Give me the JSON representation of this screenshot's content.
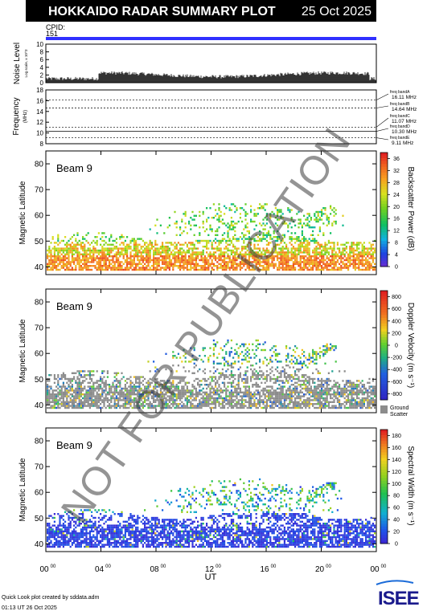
{
  "header": {
    "title": "HOKKAIDO RADAR SUMMARY PLOT",
    "date": "25 Oct 2025",
    "cpid_label": "CPID:",
    "cpid_value": "151"
  },
  "colors": {
    "header_bg": "#000000",
    "header_fg": "#ffffff",
    "cpid_bar": "#3030ff",
    "ground_scatter": "#8c8c8c"
  },
  "noise_panel": {
    "ylabel": "Noise Level",
    "ylabel_sub": "Log scale, x 10^3",
    "ylim": [
      0,
      10
    ],
    "yticks": [
      0,
      2,
      4,
      6,
      8,
      10
    ]
  },
  "frequency_panel": {
    "ylabel": "Frequency",
    "ylabel_unit": "(MHz)",
    "ylim": [
      8,
      18
    ],
    "yticks": [
      8,
      10,
      12,
      14,
      16,
      18
    ],
    "bands": [
      {
        "label": "freq bandA",
        "value": "16.11 MHz",
        "freq": 16.11
      },
      {
        "label": "freq bandB",
        "value": "14.64 MHz",
        "freq": 14.64
      },
      {
        "label": "freq bandC",
        "value": "11.07 MHz",
        "freq": 11.07
      },
      {
        "label": "freq bandD",
        "value": "10.30 MHz",
        "freq": 10.3
      },
      {
        "label": "freq bandE",
        "value": "9.11 MHz",
        "freq": 9.11
      }
    ]
  },
  "chart_data": [
    {
      "type": "heatmap",
      "beam_label": "Beam  9",
      "ylabel": "Magnetic Latitude",
      "ylim": [
        37,
        85
      ],
      "yticks": [
        40,
        50,
        60,
        70,
        80
      ],
      "colorbar_label": "Backscatter Power (dB)",
      "colorbar_ticks": [
        0,
        4,
        8,
        12,
        16,
        20,
        24,
        28,
        32,
        36
      ],
      "colorbar_range": [
        0,
        38
      ]
    },
    {
      "type": "heatmap",
      "beam_label": "Beam  9",
      "ylabel": "Magnetic Latitude",
      "ylim": [
        37,
        85
      ],
      "yticks": [
        40,
        50,
        60,
        70,
        80
      ],
      "colorbar_label": "Doppler Velocity (m s⁻¹)",
      "colorbar_ticks": [
        800,
        600,
        400,
        200,
        0,
        -200,
        -400,
        -600,
        -800
      ],
      "colorbar_range": [
        -900,
        900
      ],
      "ground_scatter_label": [
        "Ground",
        "Scatter"
      ]
    },
    {
      "type": "heatmap",
      "beam_label": "Beam  9",
      "ylabel": "Magnetic Latitude",
      "ylim": [
        37,
        85
      ],
      "yticks": [
        40,
        50,
        60,
        70,
        80
      ],
      "colorbar_label": "Spectral Width (m s⁻¹)",
      "colorbar_ticks": [
        0,
        20,
        40,
        60,
        80,
        100,
        120,
        140,
        160,
        180
      ],
      "colorbar_range": [
        0,
        190
      ]
    }
  ],
  "xaxis": {
    "label": "UT",
    "xlim": [
      0,
      24
    ],
    "ticks": [
      {
        "hour": "00",
        "sup": "00",
        "value": 0
      },
      {
        "hour": "04",
        "sup": "00",
        "value": 4
      },
      {
        "hour": "08",
        "sup": "00",
        "value": 8
      },
      {
        "hour": "12",
        "sup": "00",
        "value": 12
      },
      {
        "hour": "16",
        "sup": "00",
        "value": 16
      },
      {
        "hour": "20",
        "sup": "00",
        "value": 20
      },
      {
        "hour": "00",
        "sup": "00",
        "value": 24
      }
    ]
  },
  "footer": {
    "line1": "Quick Look plot created by sddata.adm",
    "line2": "01:13 UT 26 Oct 2025",
    "logo": "ISEE"
  },
  "watermark": "NOT FOR PUBLICATION"
}
